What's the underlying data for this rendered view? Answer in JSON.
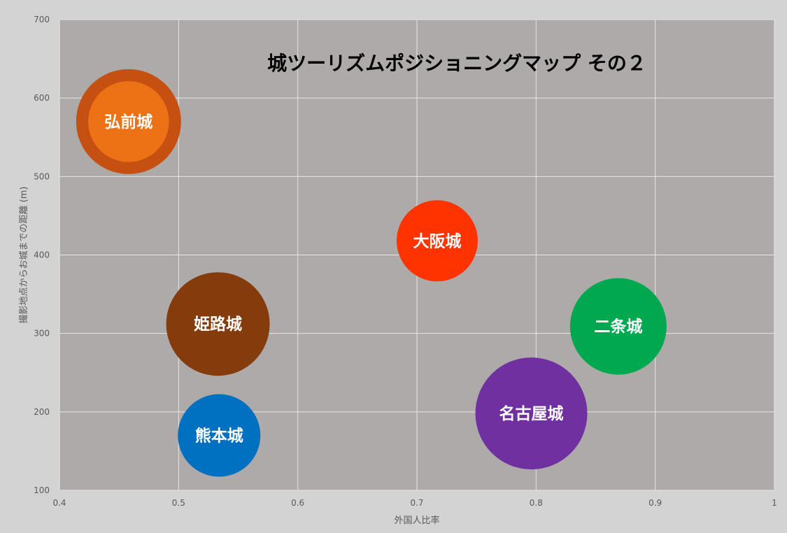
{
  "chart_data": {
    "type": "bubble",
    "title": "城ツーリズムポジショニングマップ その２",
    "xlabel": "外国人比率",
    "ylabel": "撮影地点からお城までの距離 (m)",
    "xlim": [
      0.4,
      1.0
    ],
    "ylim": [
      100,
      700
    ],
    "xticks": [
      "0.4",
      "0.5",
      "0.6",
      "0.7",
      "0.8",
      "0.9",
      "1"
    ],
    "yticks": [
      "100",
      "200",
      "300",
      "400",
      "500",
      "600",
      "700"
    ],
    "grid": true,
    "background_color": "#aeaaa9",
    "points": [
      {
        "label": "弘前城",
        "x": 0.458,
        "y": 570,
        "size": 75,
        "color": "#ec7215",
        "ring_color": "#c65011"
      },
      {
        "label": "大阪城",
        "x": 0.717,
        "y": 418,
        "size": 58,
        "color": "#ff3300"
      },
      {
        "label": "姫路城",
        "x": 0.533,
        "y": 312,
        "size": 74,
        "color": "#843c0c"
      },
      {
        "label": "二条城",
        "x": 0.869,
        "y": 309,
        "size": 69,
        "color": "#00a84f"
      },
      {
        "label": "名古屋城",
        "x": 0.796,
        "y": 198,
        "size": 80,
        "color": "#7030a0"
      },
      {
        "label": "熊本城",
        "x": 0.534,
        "y": 170,
        "size": 59,
        "color": "#0070c0"
      }
    ]
  }
}
